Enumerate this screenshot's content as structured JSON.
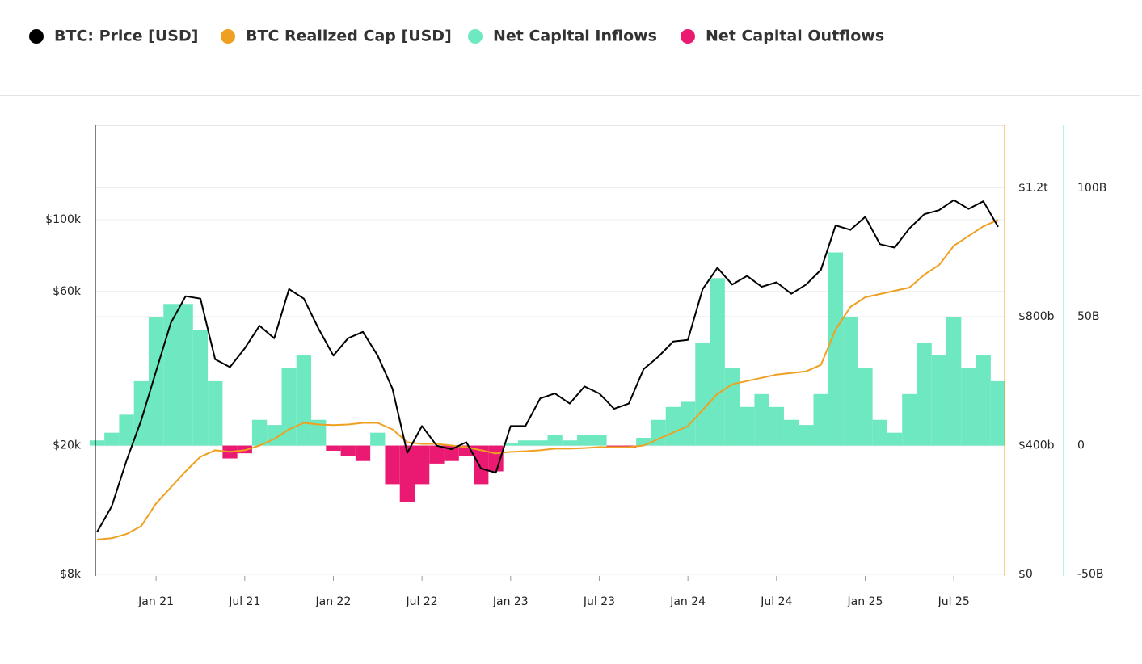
{
  "chart_data": {
    "type": "line",
    "x": [
      "2020-09",
      "2020-10",
      "2020-11",
      "2020-12",
      "2021-01",
      "2021-02",
      "2021-03",
      "2021-04",
      "2021-05",
      "2021-06",
      "2021-07",
      "2021-08",
      "2021-09",
      "2021-10",
      "2021-11",
      "2021-12",
      "2022-01",
      "2022-02",
      "2022-03",
      "2022-04",
      "2022-05",
      "2022-06",
      "2022-07",
      "2022-08",
      "2022-09",
      "2022-10",
      "2022-11",
      "2022-12",
      "2023-01",
      "2023-02",
      "2023-03",
      "2023-04",
      "2023-05",
      "2023-06",
      "2023-07",
      "2023-08",
      "2023-09",
      "2023-10",
      "2023-11",
      "2023-12",
      "2024-01",
      "2024-02",
      "2024-03",
      "2024-04",
      "2024-05",
      "2024-06",
      "2024-07",
      "2024-08",
      "2024-09",
      "2024-10",
      "2024-11",
      "2024-12",
      "2025-01",
      "2025-02",
      "2025-03",
      "2025-04",
      "2025-05",
      "2025-06",
      "2025-07",
      "2025-08",
      "2025-09",
      "2025-10"
    ],
    "xlim": [
      "2020-09",
      "2025-10"
    ],
    "xticks": [
      {
        "value": "2021-01",
        "label": "Jan 21"
      },
      {
        "value": "2021-07",
        "label": "Jul 21"
      },
      {
        "value": "2022-01",
        "label": "Jan 22"
      },
      {
        "value": "2022-07",
        "label": "Jul 22"
      },
      {
        "value": "2023-01",
        "label": "Jan 23"
      },
      {
        "value": "2023-07",
        "label": "Jul 23"
      },
      {
        "value": "2024-01",
        "label": "Jan 24"
      },
      {
        "value": "2024-07",
        "label": "Jul 24"
      },
      {
        "value": "2025-01",
        "label": "Jan 25"
      },
      {
        "value": "2025-07",
        "label": "Jul 25"
      }
    ],
    "ylim": [
      8000,
      196000
    ],
    "ylog": true,
    "yticks": [
      {
        "value": 8000,
        "label": "$8k"
      },
      {
        "value": 20000,
        "label": "$20k"
      },
      {
        "value": 60000,
        "label": "$60k"
      },
      {
        "value": 100000,
        "label": "$100k"
      }
    ],
    "y2lim": [
      0,
      1394000000000.0
    ],
    "y2ticks": [
      {
        "value": 0,
        "label": "$0"
      },
      {
        "value": 400000000000.0,
        "label": "$400b"
      },
      {
        "value": 800000000000.0,
        "label": "$800b"
      },
      {
        "value": 1200000000000.0,
        "label": "$1.2t"
      }
    ],
    "y3lim": [
      -50000000000.0,
      124400000000.0
    ],
    "y3ticks": [
      {
        "value": -50000000000.0,
        "label": "-50B"
      },
      {
        "value": 0,
        "label": "0"
      },
      {
        "value": 50000000000.0,
        "label": "50B"
      },
      {
        "value": 100000000000.0,
        "label": "100B"
      }
    ],
    "grid": true,
    "series": [
      {
        "name": "BTC: Price [USD]",
        "color": "#000000",
        "type": "line",
        "axis": "y",
        "values": [
          10800,
          13000,
          18000,
          24000,
          34000,
          48000,
          58000,
          57000,
          37000,
          35000,
          40000,
          47000,
          43000,
          61000,
          57000,
          46000,
          38000,
          43000,
          45000,
          38000,
          30000,
          19000,
          23000,
          20000,
          19500,
          20500,
          17000,
          16500,
          23000,
          23000,
          28000,
          29000,
          27000,
          30500,
          29000,
          26000,
          27000,
          34500,
          37700,
          42000,
          42500,
          61000,
          71000,
          63000,
          67000,
          62000,
          64000,
          59000,
          63000,
          70000,
          96000,
          93000,
          102000,
          84000,
          82000,
          94000,
          104000,
          107000,
          115000,
          108000,
          114000,
          95000
        ]
      },
      {
        "name": "BTC Realized Cap [USD]",
        "color": "#f0a020",
        "type": "line",
        "axis": "y2",
        "values": [
          108000000000.0,
          112000000000.0,
          125000000000.0,
          150000000000.0,
          220000000000.0,
          270000000000.0,
          320000000000.0,
          365000000000.0,
          385000000000.0,
          380000000000.0,
          385000000000.0,
          400000000000.0,
          420000000000.0,
          450000000000.0,
          470000000000.0,
          465000000000.0,
          463000000000.0,
          465000000000.0,
          470000000000.0,
          470000000000.0,
          450000000000.0,
          410000000000.0,
          405000000000.0,
          405000000000.0,
          400000000000.0,
          395000000000.0,
          385000000000.0,
          375000000000.0,
          380000000000.0,
          382000000000.0,
          385000000000.0,
          390000000000.0,
          390000000000.0,
          392000000000.0,
          395000000000.0,
          395000000000.0,
          395000000000.0,
          400000000000.0,
          420000000000.0,
          440000000000.0,
          460000000000.0,
          510000000000.0,
          560000000000.0,
          590000000000.0,
          600000000000.0,
          610000000000.0,
          620000000000.0,
          625000000000.0,
          630000000000.0,
          650000000000.0,
          760000000000.0,
          830000000000.0,
          860000000000.0,
          870000000000.0,
          880000000000.0,
          890000000000.0,
          930000000000.0,
          960000000000.0,
          1020000000000.0,
          1050000000000.0,
          1080000000000.0,
          1100000000000.0
        ]
      },
      {
        "name": "Net Capital Inflows",
        "color": "#6ee8c0",
        "type": "bar",
        "axis": "y3",
        "values": [
          2000000000.0,
          5000000000.0,
          12000000000.0,
          25000000000.0,
          50000000000.0,
          55000000000.0,
          55000000000.0,
          45000000000.0,
          25000000000.0,
          null,
          null,
          10000000000.0,
          8000000000.0,
          30000000000.0,
          35000000000.0,
          10000000000.0,
          null,
          null,
          null,
          5000000000.0,
          null,
          null,
          null,
          null,
          null,
          null,
          null,
          null,
          1000000000.0,
          2000000000.0,
          2000000000.0,
          4000000000.0,
          2000000000.0,
          4000000000.0,
          4000000000.0,
          null,
          null,
          3000000000.0,
          10000000000.0,
          15000000000.0,
          17000000000.0,
          40000000000.0,
          65000000000.0,
          30000000000.0,
          15000000000.0,
          20000000000.0,
          15000000000.0,
          10000000000.0,
          8000000000.0,
          20000000000.0,
          75000000000.0,
          50000000000.0,
          30000000000.0,
          10000000000.0,
          5000000000.0,
          20000000000.0,
          40000000000.0,
          35000000000.0,
          50000000000.0,
          30000000000.0,
          35000000000.0,
          25000000000.0
        ]
      },
      {
        "name": "Net Capital Outflows",
        "color": "#ea1a72",
        "type": "bar",
        "axis": "y3",
        "values": [
          null,
          null,
          null,
          null,
          null,
          null,
          null,
          null,
          null,
          -5000000000.0,
          -3000000000.0,
          null,
          null,
          null,
          null,
          null,
          -2000000000.0,
          -4000000000.0,
          -6000000000.0,
          null,
          -15000000000.0,
          -22000000000.0,
          -15000000000.0,
          -7000000000.0,
          -6000000000.0,
          -4000000000.0,
          -15000000000.0,
          -10000000000.0,
          null,
          null,
          null,
          null,
          null,
          null,
          null,
          -1000000000.0,
          -1000000000.0,
          null,
          null,
          null,
          null,
          null,
          null,
          null,
          null,
          null,
          null,
          null,
          null,
          null,
          null,
          null,
          null,
          null,
          null,
          null,
          null,
          null,
          null,
          null,
          null,
          null
        ]
      }
    ]
  }
}
